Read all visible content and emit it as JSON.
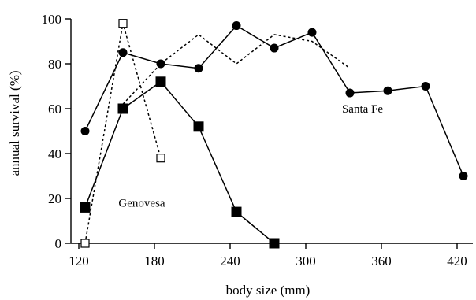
{
  "chart_data": {
    "type": "line",
    "xlabel": "body size (mm)",
    "ylabel": "annual survival (%)",
    "xlim": [
      115,
      430
    ],
    "ylim": [
      0,
      100
    ],
    "xticks": [
      120,
      180,
      240,
      300,
      360,
      420
    ],
    "yticks": [
      0,
      20,
      40,
      60,
      80,
      100
    ],
    "grid": false,
    "annotations": [
      {
        "text": "Santa Fe",
        "x": 345,
        "y": 60
      },
      {
        "text": "Genovesa",
        "x": 170,
        "y": 18
      }
    ],
    "series": [
      {
        "marker": "circle-filled",
        "line": "solid",
        "x": [
          125,
          155,
          185,
          215,
          245,
          275,
          305,
          335,
          365,
          395,
          425
        ],
        "y": [
          50,
          85,
          80,
          78,
          97,
          87,
          94,
          67,
          68,
          70,
          30
        ]
      },
      {
        "marker": "none",
        "line": "dotted",
        "x": [
          155,
          185,
          215,
          245,
          275,
          305,
          335
        ],
        "y": [
          62,
          80,
          93,
          80,
          93,
          90,
          78
        ]
      },
      {
        "marker": "square-filled",
        "line": "solid",
        "x": [
          125,
          155,
          185,
          215,
          245,
          275
        ],
        "y": [
          16,
          60,
          72,
          52,
          14,
          0
        ]
      },
      {
        "marker": "square-open",
        "line": "dotted",
        "x": [
          125,
          155,
          185
        ],
        "y": [
          0,
          98,
          38
        ]
      }
    ]
  }
}
